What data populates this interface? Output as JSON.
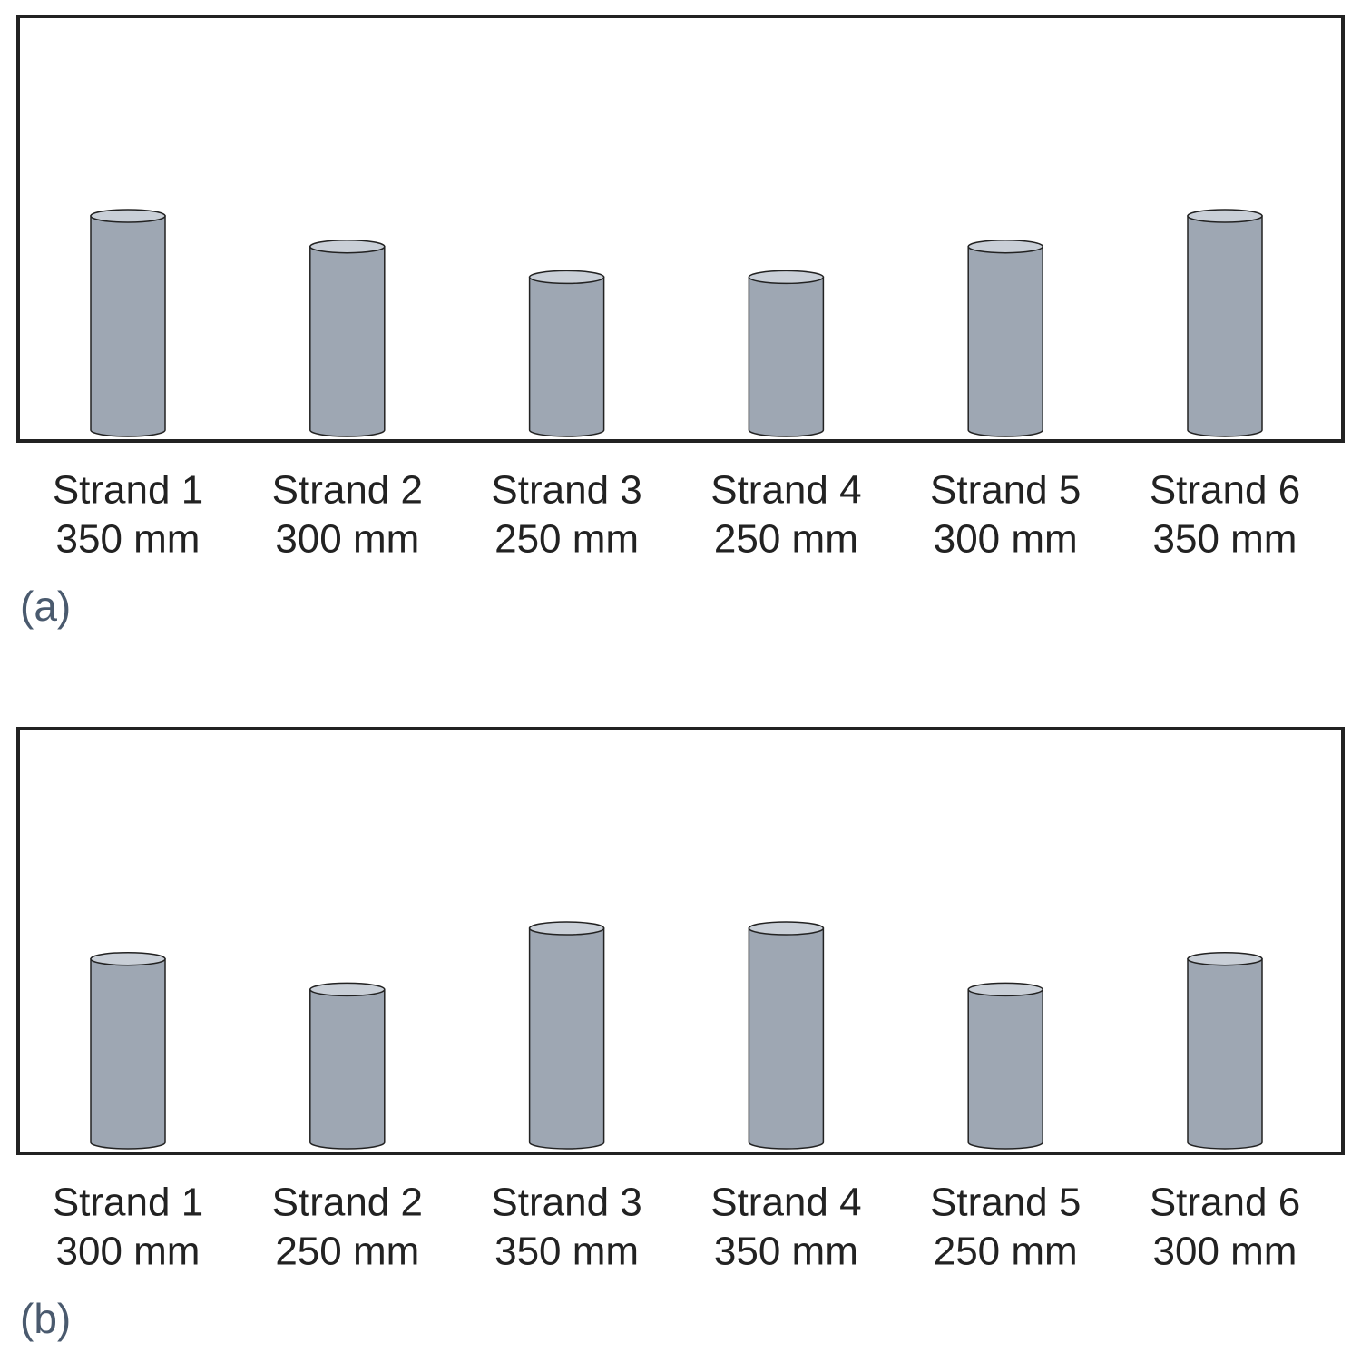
{
  "chart_data": [
    {
      "type": "cylinder",
      "title": "(a)",
      "categories": [
        "Strand 1",
        "Strand 2",
        "Strand 3",
        "Strand 4",
        "Strand 5",
        "Strand 6"
      ],
      "values": [
        350,
        300,
        250,
        250,
        300,
        350
      ],
      "value_labels": [
        "350 mm",
        "300 mm",
        "250 mm",
        "250 mm",
        "300 mm",
        "350 mm"
      ],
      "color": "#9ea7b3"
    },
    {
      "type": "cylinder",
      "title": "(b)",
      "categories": [
        "Strand 1",
        "Strand 2",
        "Strand 3",
        "Strand 4",
        "Strand 5",
        "Strand 6"
      ],
      "values": [
        300,
        250,
        350,
        350,
        250,
        300
      ],
      "value_labels": [
        "300 mm",
        "250 mm",
        "350 mm",
        "350 mm",
        "250 mm",
        "300 mm"
      ],
      "color": "#9ea7b3"
    }
  ]
}
